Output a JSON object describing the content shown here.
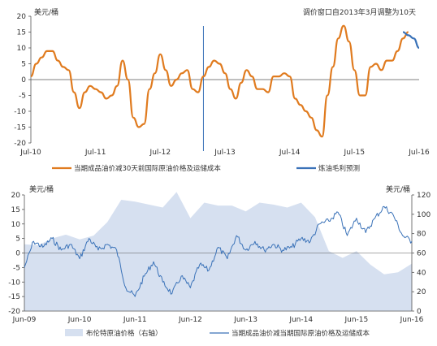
{
  "chart_data": [
    {
      "type": "line",
      "unit_label": "美元/桶",
      "annotation": "调价窗口自2013年3月调整为10天",
      "ylim": [
        -20,
        20
      ],
      "yticks": [
        20,
        15,
        10,
        5,
        0,
        -5,
        -10,
        -15,
        -20
      ],
      "xticks": [
        "Jul-10",
        "Jul-11",
        "Jul-12",
        "Jul-13",
        "Jul-14",
        "Jul-15",
        "Jul-16"
      ],
      "vline_at": "2013-03",
      "grid": false,
      "legend_position": "bottom",
      "series": [
        {
          "name": "当期成品油价减30天前国际原油价格及运储成本",
          "color": "#E07B1F",
          "x": [
            "2010-07",
            "2010-08",
            "2010-09",
            "2010-10",
            "2010-11",
            "2010-12",
            "2011-01",
            "2011-02",
            "2011-03",
            "2011-04",
            "2011-05",
            "2011-06",
            "2011-07",
            "2011-08",
            "2011-09",
            "2011-10",
            "2011-11",
            "2011-12",
            "2012-01",
            "2012-02",
            "2012-03",
            "2012-04",
            "2012-05",
            "2012-06",
            "2012-07",
            "2012-08",
            "2012-09",
            "2012-10",
            "2012-11",
            "2012-12",
            "2013-01",
            "2013-02",
            "2013-03",
            "2013-04",
            "2013-05",
            "2013-06",
            "2013-07",
            "2013-08",
            "2013-09",
            "2013-10",
            "2013-11",
            "2013-12",
            "2014-01",
            "2014-02",
            "2014-03",
            "2014-04",
            "2014-05",
            "2014-06",
            "2014-07",
            "2014-08",
            "2014-09",
            "2014-10",
            "2014-11",
            "2014-12",
            "2015-01",
            "2015-02",
            "2015-03",
            "2015-04",
            "2015-05",
            "2015-06",
            "2015-07",
            "2015-08",
            "2015-09",
            "2015-10",
            "2015-11",
            "2015-12",
            "2016-01",
            "2016-02",
            "2016-03",
            "2016-04",
            "2016-05"
          ],
          "values": [
            1,
            5,
            7,
            9,
            9,
            6,
            4,
            3,
            -4,
            -9,
            -4,
            -2,
            -3,
            -4,
            -6,
            -5,
            -2,
            6,
            0,
            -12,
            -15,
            -14,
            -3,
            2,
            8,
            3,
            -2,
            0,
            2,
            3,
            -3,
            -4,
            1,
            4,
            6,
            5,
            2,
            -3,
            -6,
            -1,
            3,
            1,
            -3,
            -3,
            -4,
            1,
            1,
            2,
            1,
            -6,
            -8,
            -10,
            -12,
            -16,
            -18,
            -5,
            4,
            13,
            17,
            12,
            3,
            -5,
            -5,
            4,
            5,
            3,
            6,
            6,
            9,
            13,
            15
          ]
        },
        {
          "name": "炼油毛利预测",
          "color": "#3A72B8",
          "x": [
            "2016-04",
            "2016-05",
            "2016-06",
            "2016-07"
          ],
          "values": [
            15,
            14,
            13,
            10
          ]
        }
      ]
    },
    {
      "type": "area",
      "unit_label_left": "美元/桶",
      "unit_label_right": "美元/桶",
      "ylim": [
        -20,
        20
      ],
      "y2lim": [
        0,
        120
      ],
      "yticks": [
        20,
        15,
        10,
        5,
        0,
        -5,
        -10,
        -15,
        -20
      ],
      "y2ticks": [
        120,
        100,
        80,
        60,
        40,
        20,
        0
      ],
      "xticks": [
        "Jun-09",
        "Jun-10",
        "Jun-11",
        "Jun-12",
        "Jun-13",
        "Jun-14",
        "Jun-15",
        "Jun-16"
      ],
      "grid": false,
      "legend_position": "bottom",
      "series": [
        {
          "name": "布伦特原油价格（右轴）",
          "kind": "area",
          "axis": "right",
          "color": "#D6E0F0",
          "x": [
            "2009-06",
            "2009-09",
            "2009-12",
            "2010-03",
            "2010-06",
            "2010-09",
            "2010-12",
            "2011-03",
            "2011-06",
            "2011-09",
            "2011-12",
            "2012-03",
            "2012-06",
            "2012-09",
            "2012-12",
            "2013-03",
            "2013-06",
            "2013-09",
            "2013-12",
            "2014-03",
            "2014-06",
            "2014-09",
            "2014-12",
            "2015-03",
            "2015-06",
            "2015-09",
            "2015-12",
            "2016-03",
            "2016-06"
          ],
          "values": [
            69,
            68,
            75,
            79,
            74,
            78,
            92,
            115,
            113,
            110,
            107,
            123,
            96,
            112,
            109,
            109,
            103,
            112,
            110,
            107,
            112,
            97,
            62,
            55,
            62,
            48,
            38,
            40,
            49
          ]
        },
        {
          "name": "当期成品油价减当期国际原油价格及运储成本",
          "kind": "line",
          "axis": "left",
          "color": "#3A72B8",
          "x": [
            "2009-06",
            "2009-08",
            "2009-10",
            "2009-12",
            "2010-02",
            "2010-04",
            "2010-06",
            "2010-08",
            "2010-10",
            "2010-12",
            "2011-02",
            "2011-04",
            "2011-06",
            "2011-08",
            "2011-10",
            "2011-12",
            "2012-02",
            "2012-04",
            "2012-06",
            "2012-08",
            "2012-10",
            "2012-12",
            "2013-02",
            "2013-04",
            "2013-06",
            "2013-08",
            "2013-10",
            "2013-12",
            "2014-02",
            "2014-04",
            "2014-06",
            "2014-08",
            "2014-10",
            "2014-12",
            "2015-02",
            "2015-04",
            "2015-06",
            "2015-08",
            "2015-10",
            "2015-12",
            "2016-02",
            "2016-04",
            "2016-06"
          ],
          "values": [
            -5,
            4,
            2,
            5,
            1,
            3,
            -2,
            5,
            1,
            3,
            1,
            -12,
            -15,
            -8,
            -3,
            -10,
            -14,
            -8,
            -12,
            -4,
            -6,
            2,
            -2,
            6,
            1,
            4,
            1,
            3,
            1,
            2,
            5,
            4,
            10,
            11,
            14,
            6,
            12,
            7,
            12,
            16,
            13,
            6,
            4
          ]
        }
      ]
    }
  ]
}
